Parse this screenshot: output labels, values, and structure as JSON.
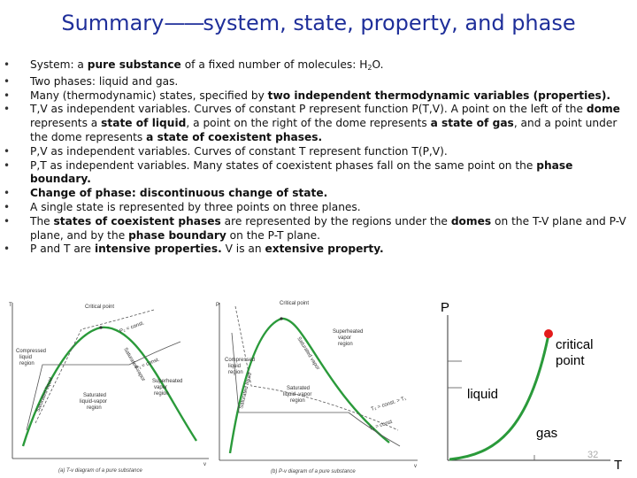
{
  "title": {
    "pre": "Summary",
    "dash": "——",
    "post": "system, state, property, and phase"
  },
  "bullets": [
    {
      "parts": [
        {
          "t": "System:  a "
        },
        {
          "t": "pure substance",
          "b": true
        },
        {
          "t": " of a fixed number of molecules:  H"
        },
        {
          "t": "2",
          "sub": true
        },
        {
          "t": "O."
        }
      ]
    },
    {
      "parts": [
        {
          "t": "Two phases: liquid and gas."
        }
      ]
    },
    {
      "parts": [
        {
          "t": "Many (thermodynamic) states, specified by "
        },
        {
          "t": "two independent thermodynamic variables (properties).",
          "b": true
        }
      ]
    },
    {
      "parts": [
        {
          "t": "T,V as independent variables.  Curves of constant P represent function P(T,V).  A point on the left of the "
        },
        {
          "t": "dome",
          "b": true
        },
        {
          "t": " represents a "
        },
        {
          "t": "state of liquid",
          "b": true
        },
        {
          "t": ", a point on the right of the dome represents "
        },
        {
          "t": "a state of gas",
          "b": true
        },
        {
          "t": ", and a point under the dome represents "
        },
        {
          "t": "a state of coexistent phases.",
          "b": true
        }
      ]
    },
    {
      "parts": [
        {
          "t": "P,V as independent variables.  Curves of constant T represent function T(P,V)."
        }
      ]
    },
    {
      "parts": [
        {
          "t": "P,T as independent variables.  Many states of coexistent phases fall on the same point on the "
        },
        {
          "t": "phase boundary.",
          "b": true
        }
      ]
    },
    {
      "parts": [
        {
          "t": "Change of phase:  discontinuous change of state.",
          "b": true
        }
      ]
    },
    {
      "parts": [
        {
          "t": "A single state is represented by three points on three planes."
        }
      ]
    },
    {
      "parts": [
        {
          "t": "The "
        },
        {
          "t": "states of coexistent phases",
          "b": true
        },
        {
          "t": " are represented by the regions under the "
        },
        {
          "t": "domes",
          "b": true
        },
        {
          "t": " on the T-V plane and P-V plane, and by the "
        },
        {
          "t": "phase boundary",
          "b": true
        },
        {
          "t": " on the P-T plane."
        }
      ]
    },
    {
      "parts": [
        {
          "t": "P and T are "
        },
        {
          "t": "intensive properties.",
          "b": true
        },
        {
          "t": "  V is an "
        },
        {
          "t": "extensive property.",
          "b": true
        }
      ]
    }
  ],
  "tv_diagram": {
    "axis_y": "T",
    "axis_x": "v",
    "critical_point": "Critical point",
    "compressed": [
      "Compressed",
      "liquid",
      "region"
    ],
    "superheated": [
      "Superheated",
      "vapor",
      "region"
    ],
    "saturated": [
      "Saturated",
      "liquid-vapor",
      "region"
    ],
    "sat_liquid": "Saturated liquid",
    "sat_vapor": "Saturated vapor",
    "p2": "P₂ = const.",
    "p1": "P₁ = const.",
    "caption": "(a) T-v diagram of a pure substance"
  },
  "pv_diagram": {
    "axis_y": "P",
    "axis_x": "v",
    "critical_point": "Critical point",
    "compressed": [
      "Compressed",
      "liquid",
      "region"
    ],
    "superheated": [
      "Superheated",
      "vapor",
      "region"
    ],
    "saturated": [
      "Saturated",
      "liquid–vapor",
      "region"
    ],
    "sat_liquid": "Saturated liquid",
    "sat_vapor": "Saturated vapor",
    "t2": "T₂ = const. > T₁",
    "t1": "T₁ = const",
    "caption": "(b) P-v diagram of a pure substance"
  },
  "pt_diagram": {
    "axis_y": "P",
    "axis_x": "T",
    "critical_point": [
      "critical",
      "point"
    ],
    "liquid": "liquid",
    "gas": "gas"
  },
  "slide_number": "32",
  "colors": {
    "title": "#1f2f9a",
    "dome": "#2a9a3a",
    "critical_dot": "#e31b1b"
  }
}
